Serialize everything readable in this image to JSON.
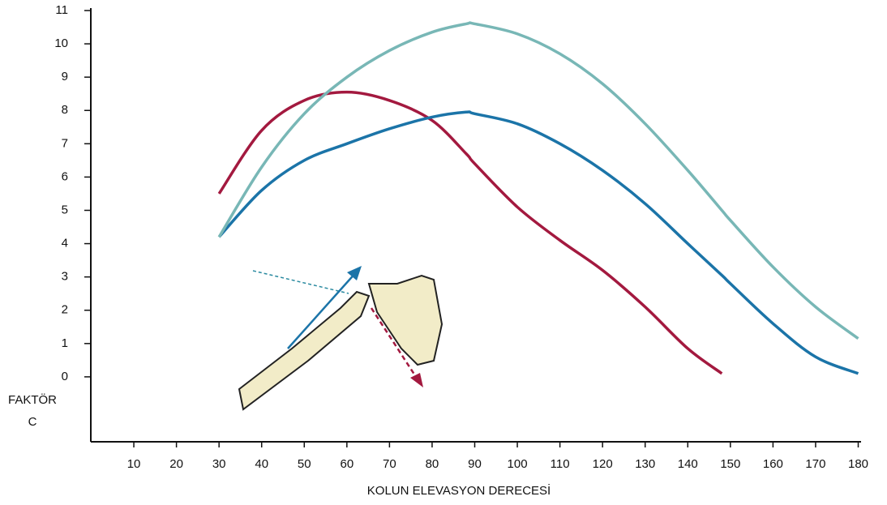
{
  "chart_data": {
    "type": "line",
    "xlabel": "KOLUN ELEVASYON DERECESİ",
    "ylabel": [
      "FAKTÖR",
      "C"
    ],
    "x": [
      30,
      40,
      50,
      60,
      70,
      80,
      88,
      90,
      100,
      110,
      120,
      130,
      140,
      148,
      150,
      160,
      170,
      180
    ],
    "series": [
      {
        "color": "#a3193f",
        "values": [
          5.5,
          7.4,
          8.3,
          8.55,
          8.3,
          7.7,
          6.7,
          6.4,
          5.1,
          4.1,
          3.2,
          2.1,
          0.85,
          0.1,
          null,
          null,
          null,
          null
        ]
      },
      {
        "color": "#1b74a8",
        "values": [
          4.2,
          5.6,
          6.5,
          7.0,
          7.45,
          7.8,
          7.95,
          7.9,
          7.6,
          7.0,
          6.2,
          5.2,
          4.0,
          3.05,
          2.8,
          1.6,
          0.6,
          0.1
        ]
      },
      {
        "color": "#78b7b6",
        "values": [
          4.2,
          6.3,
          7.9,
          9.0,
          9.8,
          10.35,
          10.6,
          10.6,
          10.3,
          9.7,
          8.8,
          7.6,
          6.2,
          5.0,
          4.7,
          3.3,
          2.1,
          1.15
        ]
      }
    ],
    "xlim": [
      0,
      180
    ],
    "ylim": [
      -1.95,
      11
    ],
    "xticks": [
      10,
      20,
      30,
      40,
      50,
      60,
      70,
      80,
      90,
      100,
      110,
      120,
      130,
      140,
      150,
      160,
      170,
      180
    ],
    "yticks": [
      0,
      1,
      2,
      3,
      4,
      5,
      6,
      7,
      8,
      9,
      10,
      11
    ]
  }
}
